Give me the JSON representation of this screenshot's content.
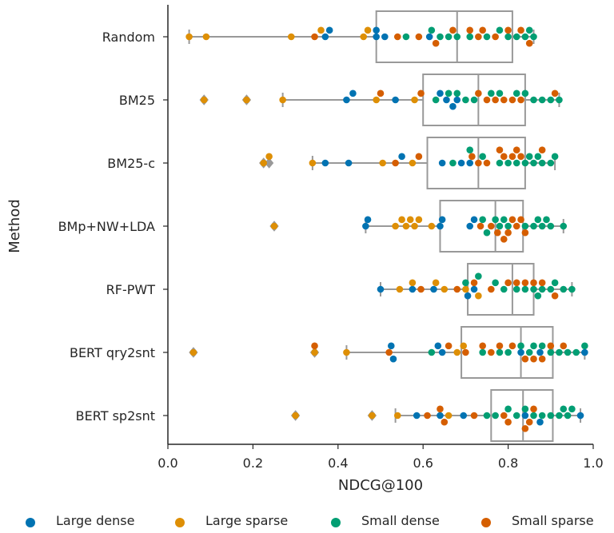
{
  "chart_data": {
    "type": "box+swarm",
    "xlabel": "NDCG@100",
    "ylabel": "Method",
    "xlim": [
      0.0,
      1.0
    ],
    "xticks": [
      "0.0",
      "0.2",
      "0.4",
      "0.6",
      "0.8",
      "1.0"
    ],
    "grid": false,
    "legend_position": "bottom",
    "legend": [
      {
        "name": "Large dense",
        "color": "#0173b2"
      },
      {
        "name": "Large sparse",
        "color": "#de8f05"
      },
      {
        "name": "Small dense",
        "color": "#029e73"
      },
      {
        "name": "Small sparse",
        "color": "#d55e00"
      }
    ],
    "categories": [
      "Random",
      "BM25",
      "BM25-c",
      "BMp+NW+LDA",
      "RF-PWT",
      "BERT qry2snt",
      "BERT sp2snt"
    ],
    "boxes": [
      {
        "whisker_low": 0.05,
        "q1": 0.49,
        "median": 0.68,
        "q3": 0.81,
        "whisker_high": 0.86,
        "outliers": []
      },
      {
        "whisker_low": 0.27,
        "q1": 0.6,
        "median": 0.73,
        "q3": 0.84,
        "whisker_high": 0.92,
        "outliers": [
          0.085,
          0.185
        ]
      },
      {
        "whisker_low": 0.34,
        "q1": 0.61,
        "median": 0.73,
        "q3": 0.84,
        "whisker_high": 0.91,
        "outliers": [
          0.225,
          0.238
        ]
      },
      {
        "whisker_low": 0.465,
        "q1": 0.64,
        "median": 0.77,
        "q3": 0.835,
        "whisker_high": 0.93,
        "outliers": [
          0.25
        ]
      },
      {
        "whisker_low": 0.5,
        "q1": 0.705,
        "median": 0.81,
        "q3": 0.86,
        "whisker_high": 0.95,
        "outliers": []
      },
      {
        "whisker_low": 0.42,
        "q1": 0.69,
        "median": 0.83,
        "q3": 0.905,
        "whisker_high": 0.98,
        "outliers": [
          0.06,
          0.345
        ]
      },
      {
        "whisker_low": 0.535,
        "q1": 0.76,
        "median": 0.835,
        "q3": 0.905,
        "whisker_high": 0.97,
        "outliers": [
          0.3,
          0.48
        ]
      }
    ],
    "points": [
      {
        "large_dense": [
          0.37,
          0.38,
          0.49,
          0.49,
          0.51,
          0.615
        ],
        "large_sparse": [
          0.05,
          0.09,
          0.29,
          0.36,
          0.46,
          0.47
        ],
        "small_dense": [
          0.56,
          0.62,
          0.64,
          0.66,
          0.68,
          0.71,
          0.75,
          0.78,
          0.8,
          0.82,
          0.84,
          0.85,
          0.86
        ],
        "small_sparse": [
          0.345,
          0.54,
          0.59,
          0.63,
          0.67,
          0.71,
          0.73,
          0.74,
          0.77,
          0.8,
          0.83,
          0.85
        ]
      },
      {
        "large_dense": [
          0.42,
          0.435,
          0.535,
          0.64,
          0.655,
          0.67,
          0.68
        ],
        "large_sparse": [
          0.085,
          0.185,
          0.27,
          0.49,
          0.58
        ],
        "small_dense": [
          0.63,
          0.66,
          0.68,
          0.7,
          0.72,
          0.76,
          0.78,
          0.82,
          0.84,
          0.86,
          0.88,
          0.9,
          0.92
        ],
        "small_sparse": [
          0.5,
          0.595,
          0.73,
          0.75,
          0.77,
          0.79,
          0.81,
          0.83,
          0.91
        ]
      },
      {
        "large_dense": [
          0.37,
          0.425,
          0.55,
          0.645,
          0.69,
          0.71
        ],
        "large_sparse": [
          0.225,
          0.238,
          0.34,
          0.505,
          0.575
        ],
        "small_dense": [
          0.67,
          0.71,
          0.74,
          0.78,
          0.8,
          0.82,
          0.84,
          0.85,
          0.86,
          0.87,
          0.88,
          0.9,
          0.91
        ],
        "small_sparse": [
          0.535,
          0.59,
          0.715,
          0.73,
          0.75,
          0.78,
          0.79,
          0.81,
          0.82,
          0.83,
          0.88
        ]
      },
      {
        "large_dense": [
          0.465,
          0.47,
          0.64,
          0.645,
          0.71,
          0.72
        ],
        "large_sparse": [
          0.25,
          0.535,
          0.55,
          0.56,
          0.57,
          0.58,
          0.59,
          0.62
        ],
        "small_dense": [
          0.74,
          0.75,
          0.77,
          0.78,
          0.79,
          0.8,
          0.84,
          0.86,
          0.87,
          0.88,
          0.89,
          0.9,
          0.93
        ],
        "small_sparse": [
          0.735,
          0.76,
          0.775,
          0.79,
          0.8,
          0.81,
          0.82,
          0.83,
          0.84
        ]
      },
      {
        "large_dense": [
          0.5,
          0.575,
          0.625,
          0.705,
          0.72
        ],
        "large_sparse": [
          0.545,
          0.575,
          0.63,
          0.65,
          0.7,
          0.73
        ],
        "small_dense": [
          0.7,
          0.73,
          0.77,
          0.79,
          0.82,
          0.84,
          0.86,
          0.87,
          0.88,
          0.9,
          0.91,
          0.93,
          0.95
        ],
        "small_sparse": [
          0.595,
          0.68,
          0.72,
          0.76,
          0.8,
          0.82,
          0.84,
          0.86,
          0.88,
          0.91
        ]
      },
      {
        "large_dense": [
          0.525,
          0.53,
          0.635,
          0.645,
          0.83,
          0.875,
          0.98
        ],
        "large_sparse": [
          0.06,
          0.345,
          0.42,
          0.68,
          0.695
        ],
        "small_dense": [
          0.62,
          0.74,
          0.78,
          0.8,
          0.83,
          0.85,
          0.86,
          0.88,
          0.9,
          0.92,
          0.94,
          0.96,
          0.98
        ],
        "small_sparse": [
          0.345,
          0.52,
          0.66,
          0.7,
          0.74,
          0.76,
          0.78,
          0.81,
          0.84,
          0.86,
          0.88,
          0.9,
          0.93
        ]
      },
      {
        "large_dense": [
          0.585,
          0.64,
          0.695,
          0.84,
          0.875,
          0.97
        ],
        "large_sparse": [
          0.3,
          0.48,
          0.54,
          0.66
        ],
        "small_dense": [
          0.75,
          0.77,
          0.8,
          0.82,
          0.84,
          0.86,
          0.88,
          0.9,
          0.92,
          0.93,
          0.94,
          0.95
        ],
        "small_sparse": [
          0.61,
          0.64,
          0.65,
          0.72,
          0.79,
          0.8,
          0.84,
          0.85,
          0.86
        ]
      }
    ]
  }
}
